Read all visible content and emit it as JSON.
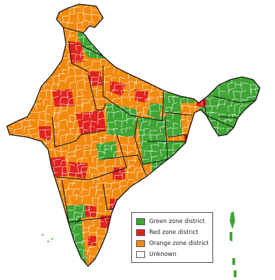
{
  "colors": {
    "green": "#3fa535",
    "red": "#e0231f",
    "orange": "#f28a0f",
    "unknown": "#ffffff",
    "district_border": "#ffffff",
    "state_border": "#111111"
  },
  "legend": {
    "items": [
      {
        "label": "Green zone district",
        "color": "#3fa535"
      },
      {
        "label": "Red zone district",
        "color": "#e0231f"
      },
      {
        "label": "Orange zone district",
        "color": "#f28a0f"
      },
      {
        "label": "Unknown",
        "color": "#ffffff"
      }
    ]
  }
}
